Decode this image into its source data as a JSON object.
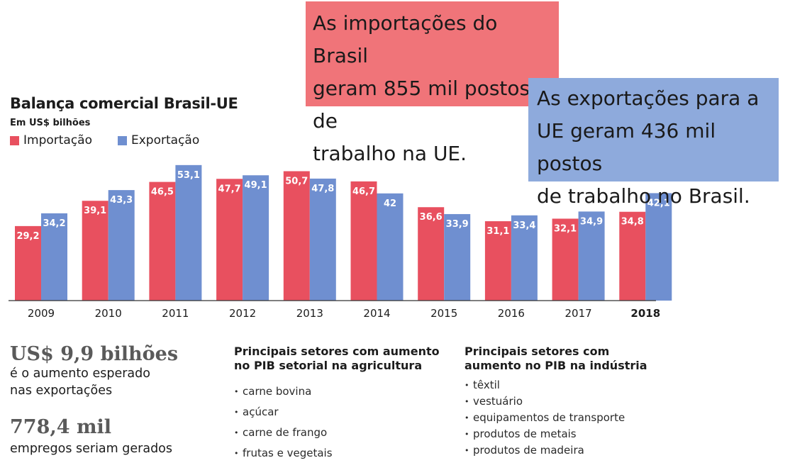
{
  "callouts": {
    "imports": {
      "text_lines": [
        "As importações do Brasil",
        "geram 855 mil postos de",
        "trabalho na UE."
      ],
      "color": "#f07479"
    },
    "exports": {
      "text_lines": [
        "As exportações para a",
        "UE geram 436 mil postos",
        "de trabalho no Brasil."
      ],
      "color": "#8eaadc"
    }
  },
  "chart_data": {
    "type": "bar",
    "title": "Balança comercial Brasil-UE",
    "subtitle": "Em US$ bilhões",
    "categories": [
      "2009",
      "2010",
      "2011",
      "2012",
      "2013",
      "2014",
      "2015",
      "2016",
      "2017",
      "2018"
    ],
    "category_labels": [
      "2009",
      "2010",
      "2011",
      "2012",
      "2013",
      "2014",
      "2015",
      "2016",
      "2017",
      "2018"
    ],
    "highlight_category": "2018",
    "series": [
      {
        "name": "Importação",
        "color": "#e8505f",
        "values": [
          29.2,
          39.1,
          46.5,
          47.7,
          50.7,
          46.7,
          36.6,
          31.1,
          32.1,
          34.8
        ],
        "labels": [
          "29,2",
          "39,1",
          "46,5",
          "47,7",
          "50,7",
          "46,7",
          "36,6",
          "31,1",
          "32,1",
          "34,8"
        ]
      },
      {
        "name": "Exportação",
        "color": "#6f8fd0",
        "values": [
          34.2,
          43.3,
          53.1,
          49.1,
          47.8,
          42,
          33.9,
          33.4,
          34.9,
          42.1
        ],
        "labels": [
          "34,2",
          "43,3",
          "53,1",
          "49,1",
          "47,8",
          "42",
          "33,9",
          "33,4",
          "34,9",
          "42,1"
        ]
      }
    ],
    "ylim": [
      0,
      55
    ],
    "grid": false,
    "legend_placement": "top-left"
  },
  "stats": [
    {
      "value": "US$ 9,9 bilhões",
      "desc_lines": [
        "é o aumento esperado",
        "nas exportações"
      ]
    },
    {
      "value": "778,4 mil",
      "desc_lines": [
        "empregos seriam gerados"
      ]
    }
  ],
  "sectors": {
    "agriculture": {
      "title_lines": [
        "Principais setores com aumento",
        "no PIB setorial na agricultura"
      ],
      "items": [
        "carne bovina",
        "açúcar",
        "carne de frango",
        "frutas e vegetais"
      ]
    },
    "industry": {
      "title_lines": [
        "Principais setores com",
        "aumento no PIB na indústria"
      ],
      "items": [
        "têxtil",
        "vestuário",
        "equipamentos de transporte",
        "produtos de metais",
        "produtos de madeira"
      ]
    }
  }
}
